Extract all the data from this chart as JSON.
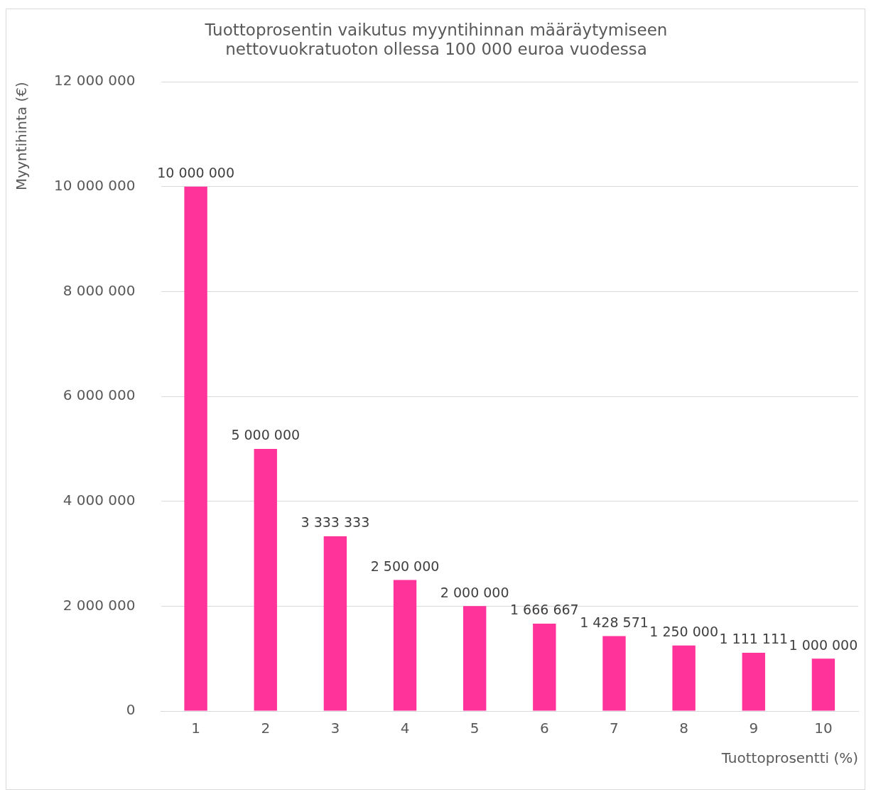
{
  "chart_data": {
    "type": "bar",
    "title": "Tuottoprosentin vaikutus myyntihinnan määräytymiseen\nnettovuokratuoton ollessa 100 000 euroa vuodessa",
    "xlabel": "Tuottoprosentti (%)",
    "ylabel": "Myyntihinta (€)",
    "categories": [
      "1",
      "2",
      "3",
      "4",
      "5",
      "6",
      "7",
      "8",
      "9",
      "10"
    ],
    "values": [
      10000000,
      5000000,
      3333333,
      2500000,
      2000000,
      1666667,
      1428571,
      1250000,
      1111111,
      1000000
    ],
    "value_labels": [
      "10 000 000",
      "5 000 000",
      "3 333 333",
      "2 500 000",
      "2 000 000",
      "1 666 667",
      "1 428 571",
      "1 250 000",
      "1 111 111",
      "1 000 000"
    ],
    "color": "#ff3399",
    "ylim": [
      0,
      12000000
    ],
    "yticks": [
      0,
      {
        "value": 2000000,
        "label": "2 000 000"
      },
      {
        "value": 4000000,
        "label": "4 000 000"
      },
      {
        "value": 6000000,
        "label": "6 000 000"
      },
      {
        "value": 8000000,
        "label": "8 000 000"
      },
      {
        "value": 10000000,
        "label": "10 000 000"
      },
      {
        "value": 12000000,
        "label": "12 000 000"
      }
    ],
    "grid": "y",
    "legend": false
  }
}
